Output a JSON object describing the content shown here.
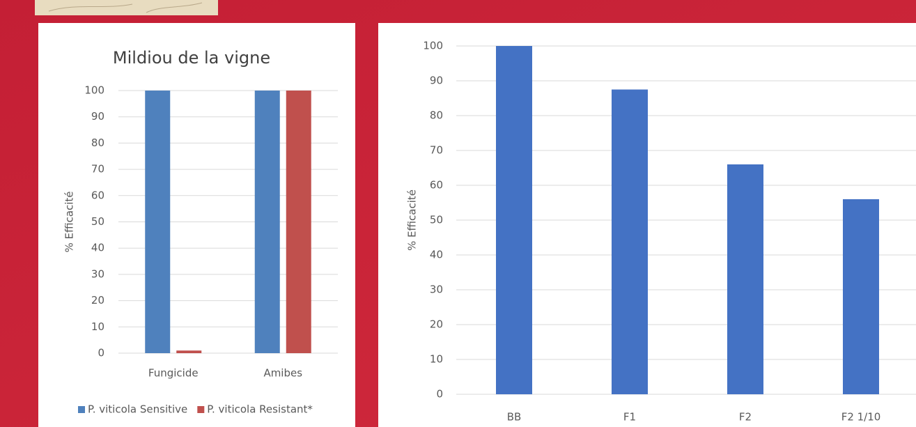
{
  "chart_data": [
    {
      "type": "bar",
      "title": "Mildiou de la vigne",
      "y_label": "% Efficacité",
      "categories": [
        "Fungicide",
        "Amibes"
      ],
      "series": [
        {
          "name": "P. viticola Sensitive",
          "color": "#4f81bd",
          "values": [
            100,
            100
          ]
        },
        {
          "name": "P. viticola Resistant*",
          "color": "#c0504d",
          "values": [
            1,
            100
          ]
        }
      ],
      "ylim": [
        0,
        100
      ],
      "yticks": [
        0,
        10,
        20,
        30,
        40,
        50,
        60,
        70,
        80,
        90,
        100
      ],
      "grid": true,
      "legend": "bottom"
    },
    {
      "type": "bar",
      "y_label": "% Efficacité",
      "categories": [
        "BB",
        "F1",
        "F2",
        "F2 1/10"
      ],
      "values": [
        100,
        87.5,
        66,
        56
      ],
      "color": "#4472c4",
      "ylim": [
        0,
        100
      ],
      "yticks": [
        0,
        10,
        20,
        30,
        40,
        50,
        60,
        70,
        80,
        90,
        100
      ],
      "grid": true
    }
  ]
}
